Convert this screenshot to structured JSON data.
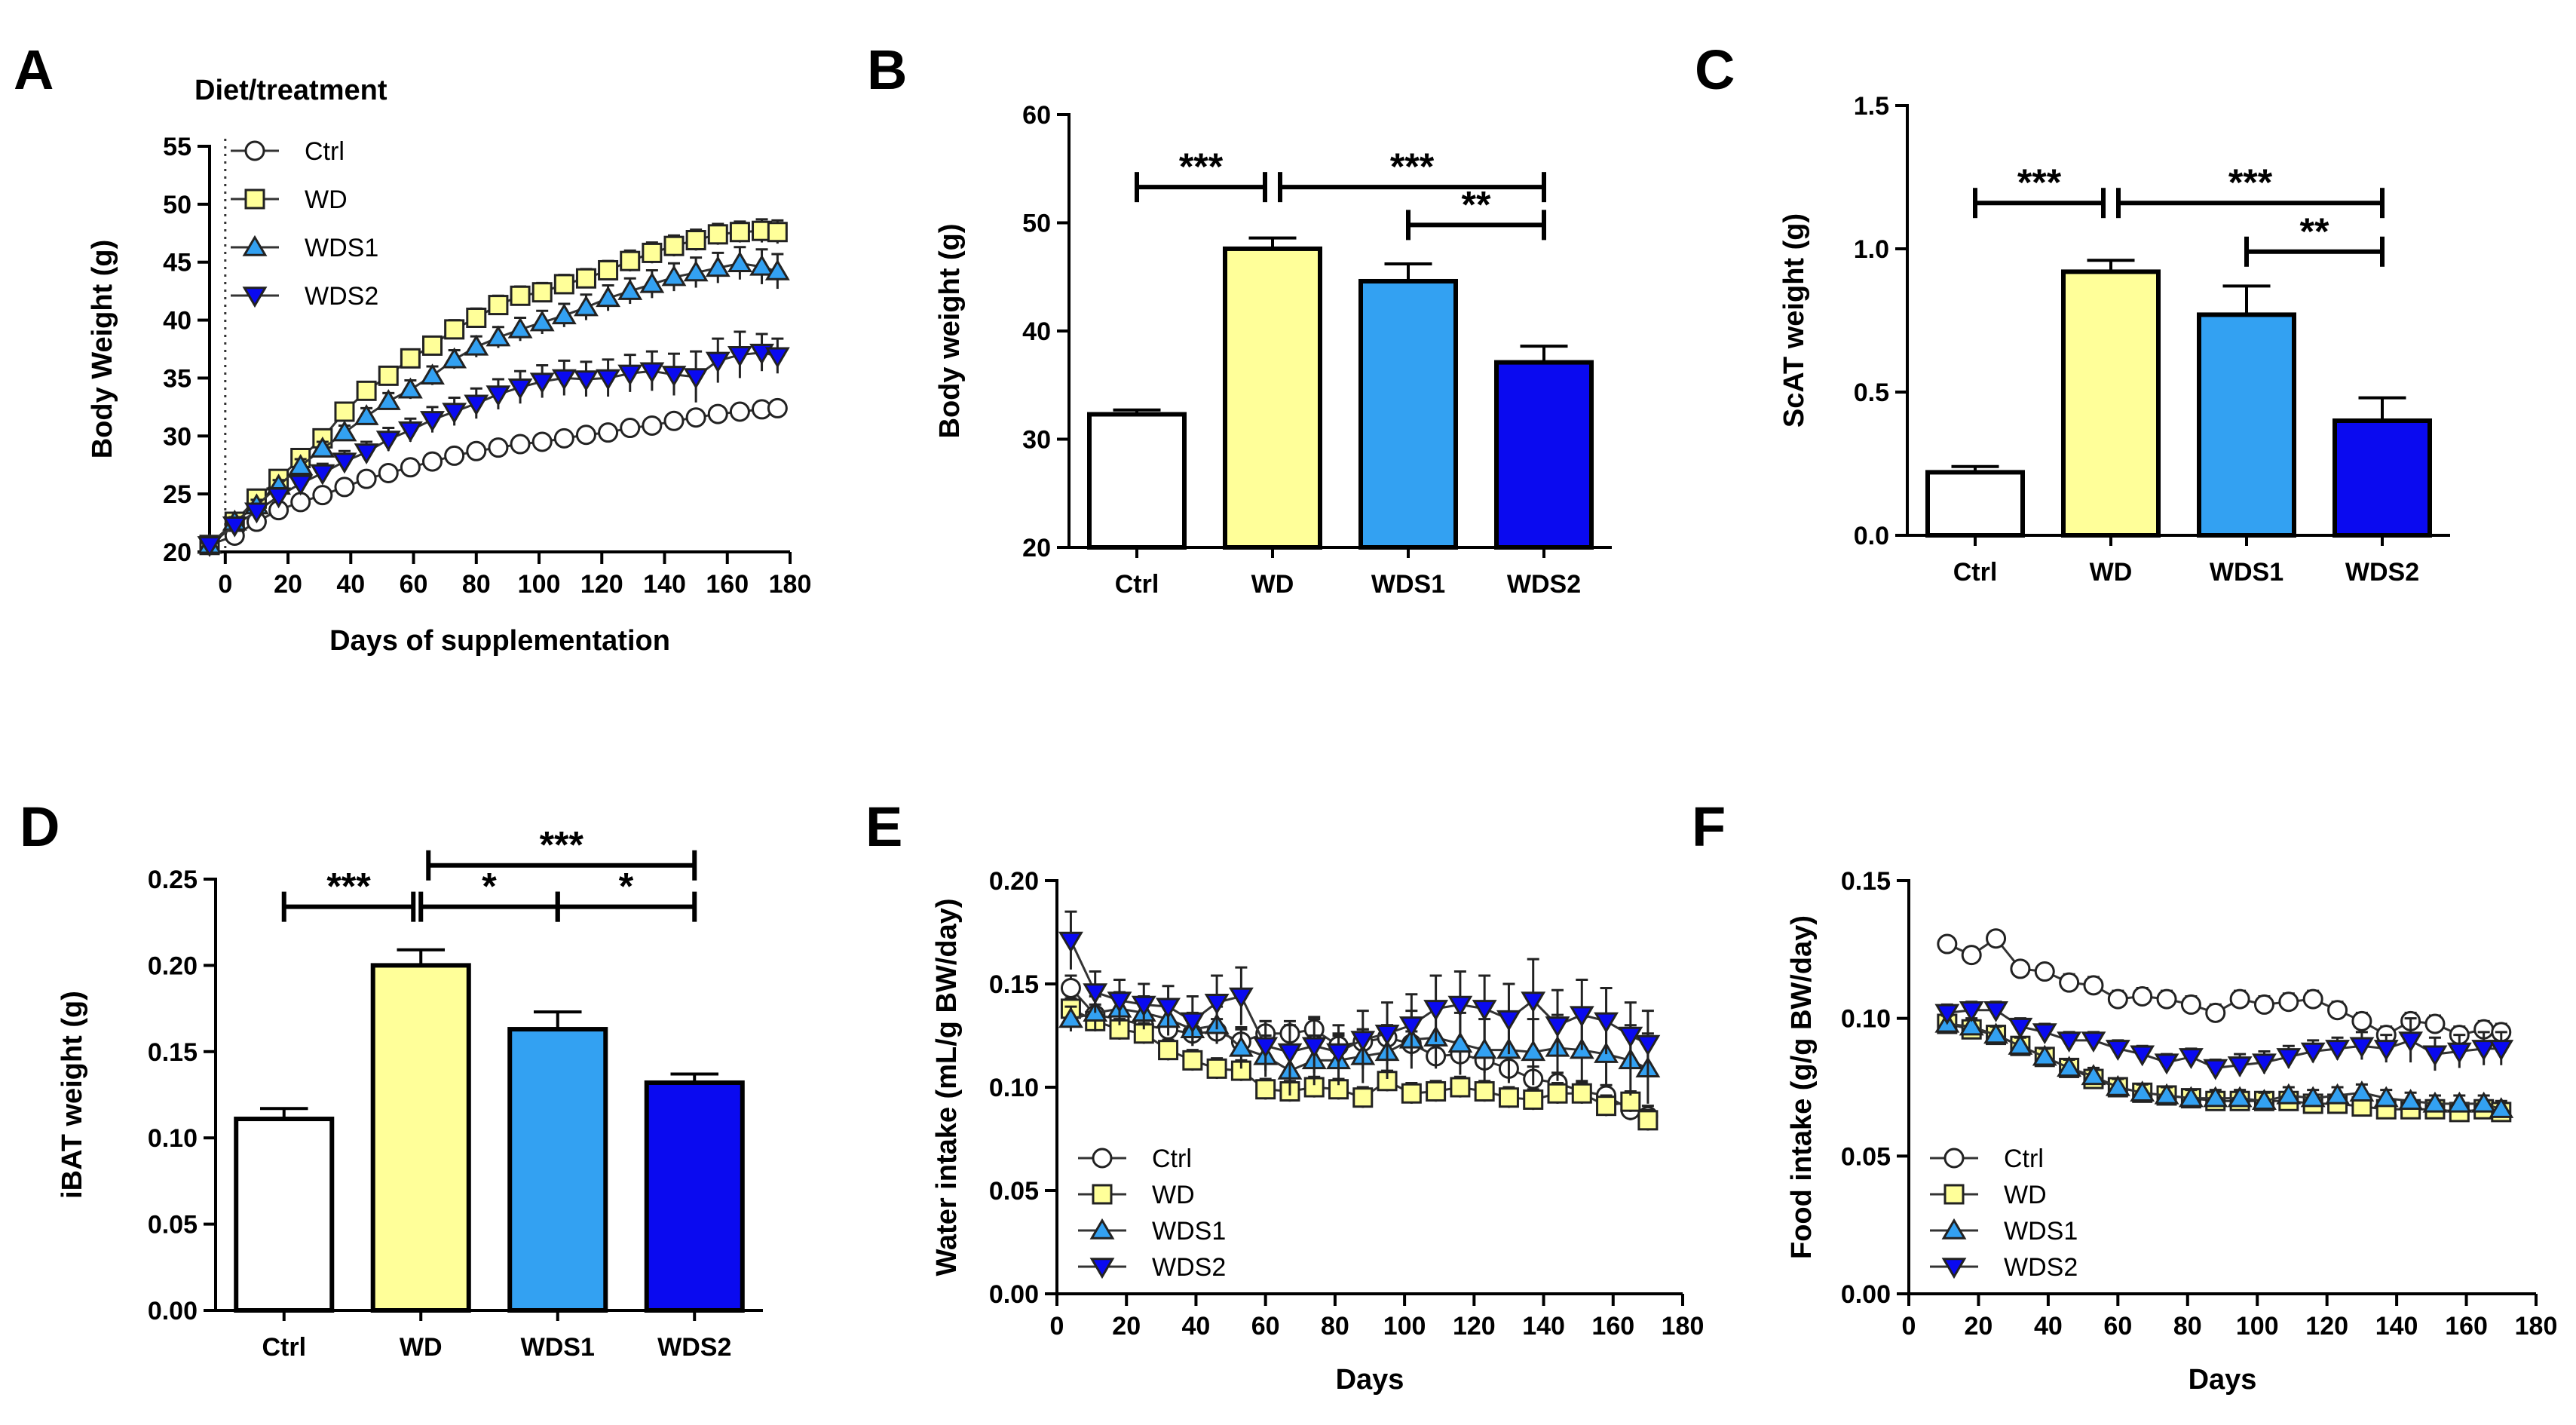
{
  "colors": {
    "Ctrl": "#ffffff",
    "WD": "#ffff99",
    "WDS1": "#33a1f2",
    "WDS2": "#0a0af0"
  },
  "chart_data": [
    {
      "id": "A",
      "letter": "A",
      "type": "line",
      "annotation": "Diet/treatment",
      "xlabel": "Days of supplementation",
      "ylabel": "Body Weight (g)",
      "xlim": [
        -5,
        180
      ],
      "ylim": [
        20,
        55
      ],
      "xticks": [
        0,
        20,
        40,
        60,
        80,
        100,
        120,
        140,
        160,
        180
      ],
      "yticks": [
        20,
        25,
        30,
        35,
        40,
        45,
        50,
        55
      ],
      "x": [
        -5,
        3,
        10,
        17,
        24,
        31,
        38,
        45,
        52,
        59,
        66,
        73,
        80,
        87,
        94,
        101,
        108,
        115,
        122,
        129,
        136,
        143,
        150,
        157,
        164,
        171,
        176
      ],
      "series": [
        {
          "name": "Ctrl",
          "values": [
            20.6,
            21.4,
            22.6,
            23.6,
            24.3,
            24.9,
            25.6,
            26.3,
            26.8,
            27.3,
            27.8,
            28.3,
            28.7,
            29.0,
            29.3,
            29.5,
            29.8,
            30.1,
            30.3,
            30.7,
            30.9,
            31.3,
            31.6,
            31.9,
            32.1,
            32.3,
            32.4
          ],
          "errors": [
            0.3,
            0.3,
            0.3,
            0.3,
            0.3,
            0.3,
            0.3,
            0.3,
            0.3,
            0.3,
            0.3,
            0.3,
            0.3,
            0.3,
            0.3,
            0.3,
            0.3,
            0.3,
            0.3,
            0.3,
            0.3,
            0.4,
            0.4,
            0.4,
            0.4,
            0.4,
            0.4
          ]
        },
        {
          "name": "WD",
          "values": [
            20.6,
            22.6,
            24.6,
            26.3,
            28.1,
            29.8,
            32.1,
            33.9,
            35.2,
            36.7,
            37.8,
            39.2,
            40.2,
            41.3,
            42.1,
            42.4,
            43.1,
            43.6,
            44.3,
            45.1,
            45.8,
            46.4,
            46.9,
            47.4,
            47.6,
            47.7,
            47.6
          ],
          "errors": [
            0.4,
            0.4,
            0.5,
            0.5,
            0.6,
            0.6,
            0.7,
            0.7,
            0.7,
            0.7,
            0.7,
            0.8,
            0.8,
            0.8,
            0.8,
            0.8,
            0.8,
            0.8,
            0.8,
            0.9,
            0.9,
            0.9,
            0.9,
            0.9,
            0.9,
            1.0,
            1.0
          ]
        },
        {
          "name": "WDS1",
          "values": [
            20.6,
            22.6,
            24.0,
            25.7,
            27.4,
            28.9,
            30.3,
            31.7,
            33.0,
            34.0,
            35.2,
            36.6,
            37.7,
            38.5,
            39.2,
            39.8,
            40.4,
            41.1,
            41.9,
            42.5,
            43.1,
            43.7,
            44.1,
            44.5,
            44.9,
            44.6,
            44.2
          ],
          "errors": [
            0.4,
            0.4,
            0.5,
            0.5,
            0.6,
            0.6,
            0.6,
            0.7,
            0.7,
            0.8,
            0.8,
            0.8,
            0.9,
            0.9,
            1.0,
            1.0,
            1.0,
            1.1,
            1.1,
            1.1,
            1.2,
            1.2,
            1.3,
            1.3,
            1.4,
            1.5,
            1.5
          ]
        },
        {
          "name": "WDS2",
          "values": [
            20.6,
            22.3,
            23.5,
            24.8,
            25.9,
            26.8,
            27.8,
            28.6,
            29.7,
            30.5,
            31.4,
            32.1,
            32.8,
            33.6,
            34.2,
            34.7,
            35.0,
            34.9,
            35.0,
            35.4,
            35.6,
            35.3,
            35.1,
            36.5,
            37.0,
            37.2,
            36.9
          ],
          "errors": [
            0.4,
            0.5,
            0.6,
            0.7,
            0.8,
            0.8,
            0.9,
            0.9,
            1.0,
            1.0,
            1.1,
            1.2,
            1.3,
            1.3,
            1.4,
            1.4,
            1.5,
            1.5,
            1.6,
            1.6,
            1.7,
            1.8,
            2.2,
            1.9,
            2.0,
            1.6,
            1.5
          ]
        }
      ],
      "legend": [
        "Ctrl",
        "WD",
        "WDS1",
        "WDS2"
      ]
    },
    {
      "id": "B",
      "letter": "B",
      "type": "bar",
      "categories": [
        "Ctrl",
        "WD",
        "WDS1",
        "WDS2"
      ],
      "values": [
        32.3,
        47.6,
        44.6,
        37.1
      ],
      "errors": [
        0.4,
        1.0,
        1.6,
        1.5
      ],
      "ylabel": "Body weight (g)",
      "ylim": [
        20,
        60
      ],
      "yticks": [
        20,
        30,
        40,
        50,
        60
      ],
      "significance": [
        {
          "from": 0,
          "to": 1,
          "label": "***",
          "level": 53.3
        },
        {
          "from": 1,
          "to": 3,
          "label": "***",
          "level": 53.3
        },
        {
          "from": 2,
          "to": 3,
          "label": "**",
          "level": 49.8
        }
      ]
    },
    {
      "id": "C",
      "letter": "C",
      "type": "bar",
      "categories": [
        "Ctrl",
        "WD",
        "WDS1",
        "WDS2"
      ],
      "values": [
        0.22,
        0.92,
        0.77,
        0.4
      ],
      "errors": [
        0.02,
        0.04,
        0.1,
        0.08
      ],
      "ylabel": "ScAT weight (g)",
      "ylim": [
        0,
        1.5
      ],
      "yticks": [
        "0.0",
        "0.5",
        "1.0",
        "1.5"
      ],
      "significance": [
        {
          "from": 0,
          "to": 1,
          "label": "***",
          "level": 1.16
        },
        {
          "from": 1,
          "to": 3,
          "label": "***",
          "level": 1.16
        },
        {
          "from": 2,
          "to": 3,
          "label": "**",
          "level": 0.99
        }
      ]
    },
    {
      "id": "D",
      "letter": "D",
      "type": "bar",
      "categories": [
        "Ctrl",
        "WD",
        "WDS1",
        "WDS2"
      ],
      "values": [
        0.111,
        0.2,
        0.163,
        0.132
      ],
      "errors": [
        0.006,
        0.009,
        0.01,
        0.005
      ],
      "ylabel": "iBAT weight (g)",
      "ylim": [
        0,
        0.25
      ],
      "yticks": [
        "0.00",
        "0.05",
        "0.10",
        "0.15",
        "0.20",
        "0.25"
      ],
      "significance": [
        {
          "from": 0,
          "to": 1,
          "label": "***",
          "level": 0.234
        },
        {
          "from": 1,
          "to": 3,
          "label": "***",
          "level": 0.258
        },
        {
          "from": 1,
          "to": 2,
          "label": "*",
          "level": 0.234
        },
        {
          "from": 2,
          "to": 3,
          "label": "*",
          "level": 0.234
        }
      ]
    },
    {
      "id": "E",
      "letter": "E",
      "type": "line",
      "xlabel": "Days",
      "ylabel": "Water intake (mL/g BW/day)",
      "xlim": [
        0,
        180
      ],
      "ylim": [
        0,
        0.2
      ],
      "xticks": [
        0,
        20,
        40,
        60,
        80,
        100,
        120,
        140,
        160,
        180
      ],
      "yticks": [
        "0.00",
        "0.05",
        "0.10",
        "0.15",
        "0.20"
      ],
      "x": [
        4,
        11,
        18,
        25,
        32,
        39,
        46,
        53,
        60,
        67,
        74,
        81,
        88,
        95,
        102,
        109,
        116,
        123,
        130,
        137,
        144,
        151,
        158,
        165,
        170
      ],
      "series": [
        {
          "name": "Ctrl",
          "values": [
            0.148,
            0.135,
            0.133,
            0.13,
            0.128,
            0.126,
            0.127,
            0.122,
            0.126,
            0.126,
            0.128,
            0.12,
            0.122,
            0.124,
            0.121,
            0.115,
            0.116,
            0.113,
            0.109,
            0.104,
            0.102,
            0.098,
            0.096,
            0.089,
            0.086
          ],
          "errors": [
            0.006,
            0.005,
            0.005,
            0.005,
            0.005,
            0.005,
            0.006,
            0.006,
            0.006,
            0.006,
            0.006,
            0.006,
            0.006,
            0.006,
            0.006,
            0.006,
            0.006,
            0.006,
            0.006,
            0.006,
            0.005,
            0.005,
            0.005,
            0.005,
            0.005
          ]
        },
        {
          "name": "WD",
          "values": [
            0.138,
            0.132,
            0.128,
            0.126,
            0.118,
            0.113,
            0.109,
            0.108,
            0.099,
            0.098,
            0.1,
            0.099,
            0.095,
            0.103,
            0.097,
            0.098,
            0.1,
            0.098,
            0.095,
            0.094,
            0.097,
            0.097,
            0.091,
            0.093,
            0.084
          ],
          "errors": [
            0.005,
            0.005,
            0.005,
            0.005,
            0.005,
            0.005,
            0.005,
            0.005,
            0.005,
            0.005,
            0.005,
            0.005,
            0.005,
            0.005,
            0.005,
            0.005,
            0.005,
            0.005,
            0.005,
            0.005,
            0.005,
            0.005,
            0.005,
            0.005,
            0.005
          ]
        },
        {
          "name": "WDS1",
          "values": [
            0.133,
            0.136,
            0.138,
            0.136,
            0.133,
            0.128,
            0.13,
            0.119,
            0.115,
            0.108,
            0.113,
            0.113,
            0.115,
            0.117,
            0.123,
            0.124,
            0.121,
            0.118,
            0.118,
            0.117,
            0.119,
            0.118,
            0.116,
            0.113,
            0.109
          ],
          "errors": [
            0.006,
            0.008,
            0.008,
            0.008,
            0.008,
            0.008,
            0.009,
            0.01,
            0.01,
            0.012,
            0.012,
            0.012,
            0.013,
            0.013,
            0.014,
            0.014,
            0.015,
            0.015,
            0.016,
            0.016,
            0.016,
            0.016,
            0.016,
            0.017,
            0.017
          ]
        },
        {
          "name": "WDS2",
          "values": [
            0.171,
            0.146,
            0.142,
            0.14,
            0.139,
            0.132,
            0.141,
            0.144,
            0.12,
            0.117,
            0.12,
            0.117,
            0.123,
            0.126,
            0.13,
            0.138,
            0.14,
            0.138,
            0.133,
            0.142,
            0.13,
            0.135,
            0.132,
            0.125,
            0.121
          ],
          "errors": [
            0.014,
            0.01,
            0.01,
            0.01,
            0.01,
            0.012,
            0.013,
            0.014,
            0.012,
            0.013,
            0.013,
            0.013,
            0.014,
            0.015,
            0.015,
            0.016,
            0.016,
            0.016,
            0.017,
            0.02,
            0.017,
            0.017,
            0.016,
            0.016,
            0.016
          ]
        }
      ],
      "legend": [
        "Ctrl",
        "WD",
        "WDS1",
        "WDS2"
      ]
    },
    {
      "id": "F",
      "letter": "F",
      "type": "line",
      "xlabel": "Days",
      "ylabel": "Food intake (g/g BW/day)",
      "xlim": [
        0,
        180
      ],
      "ylim": [
        0,
        0.15
      ],
      "xticks": [
        0,
        20,
        40,
        60,
        80,
        100,
        120,
        140,
        160,
        180
      ],
      "yticks": [
        "0.00",
        "0.05",
        "0.10",
        "0.15"
      ],
      "x": [
        11,
        18,
        25,
        32,
        39,
        46,
        53,
        60,
        67,
        74,
        81,
        88,
        95,
        102,
        109,
        116,
        123,
        130,
        137,
        144,
        151,
        158,
        165,
        170
      ],
      "series": [
        {
          "name": "Ctrl",
          "values": [
            0.127,
            0.123,
            0.129,
            0.118,
            0.117,
            0.113,
            0.112,
            0.107,
            0.108,
            0.107,
            0.105,
            0.102,
            0.107,
            0.105,
            0.106,
            0.107,
            0.103,
            0.099,
            0.094,
            0.099,
            0.098,
            0.094,
            0.096,
            0.095
          ],
          "errors": [
            0.002,
            0.002,
            0.002,
            0.002,
            0.002,
            0.003,
            0.003,
            0.003,
            0.003,
            0.003,
            0.003,
            0.003,
            0.003,
            0.003,
            0.003,
            0.003,
            0.003,
            0.003,
            0.003,
            0.003,
            0.003,
            0.003,
            0.003,
            0.003
          ]
        },
        {
          "name": "WD",
          "values": [
            0.098,
            0.096,
            0.094,
            0.09,
            0.086,
            0.082,
            0.078,
            0.075,
            0.073,
            0.072,
            0.071,
            0.07,
            0.07,
            0.07,
            0.07,
            0.069,
            0.069,
            0.068,
            0.067,
            0.067,
            0.067,
            0.066,
            0.067,
            0.066
          ],
          "errors": [
            0.002,
            0.002,
            0.002,
            0.002,
            0.002,
            0.002,
            0.002,
            0.002,
            0.002,
            0.002,
            0.002,
            0.002,
            0.002,
            0.002,
            0.002,
            0.002,
            0.002,
            0.002,
            0.002,
            0.002,
            0.002,
            0.002,
            0.002,
            0.002
          ]
        },
        {
          "name": "WDS1",
          "values": [
            0.098,
            0.097,
            0.094,
            0.09,
            0.086,
            0.082,
            0.079,
            0.075,
            0.073,
            0.072,
            0.071,
            0.071,
            0.071,
            0.07,
            0.072,
            0.071,
            0.072,
            0.073,
            0.071,
            0.07,
            0.069,
            0.069,
            0.069,
            0.067
          ],
          "errors": [
            0.003,
            0.003,
            0.003,
            0.003,
            0.003,
            0.003,
            0.003,
            0.003,
            0.003,
            0.003,
            0.003,
            0.003,
            0.003,
            0.003,
            0.003,
            0.003,
            0.003,
            0.003,
            0.003,
            0.003,
            0.003,
            0.003,
            0.003,
            0.003
          ]
        },
        {
          "name": "WDS2",
          "values": [
            0.102,
            0.103,
            0.103,
            0.097,
            0.095,
            0.092,
            0.092,
            0.089,
            0.087,
            0.084,
            0.086,
            0.082,
            0.083,
            0.084,
            0.086,
            0.088,
            0.089,
            0.09,
            0.089,
            0.092,
            0.087,
            0.088,
            0.089,
            0.089
          ],
          "errors": [
            0.003,
            0.003,
            0.003,
            0.003,
            0.003,
            0.003,
            0.003,
            0.003,
            0.003,
            0.003,
            0.003,
            0.003,
            0.004,
            0.004,
            0.004,
            0.004,
            0.004,
            0.005,
            0.005,
            0.008,
            0.006,
            0.006,
            0.006,
            0.006
          ]
        }
      ],
      "legend": [
        "Ctrl",
        "WD",
        "WDS1",
        "WDS2"
      ]
    }
  ]
}
